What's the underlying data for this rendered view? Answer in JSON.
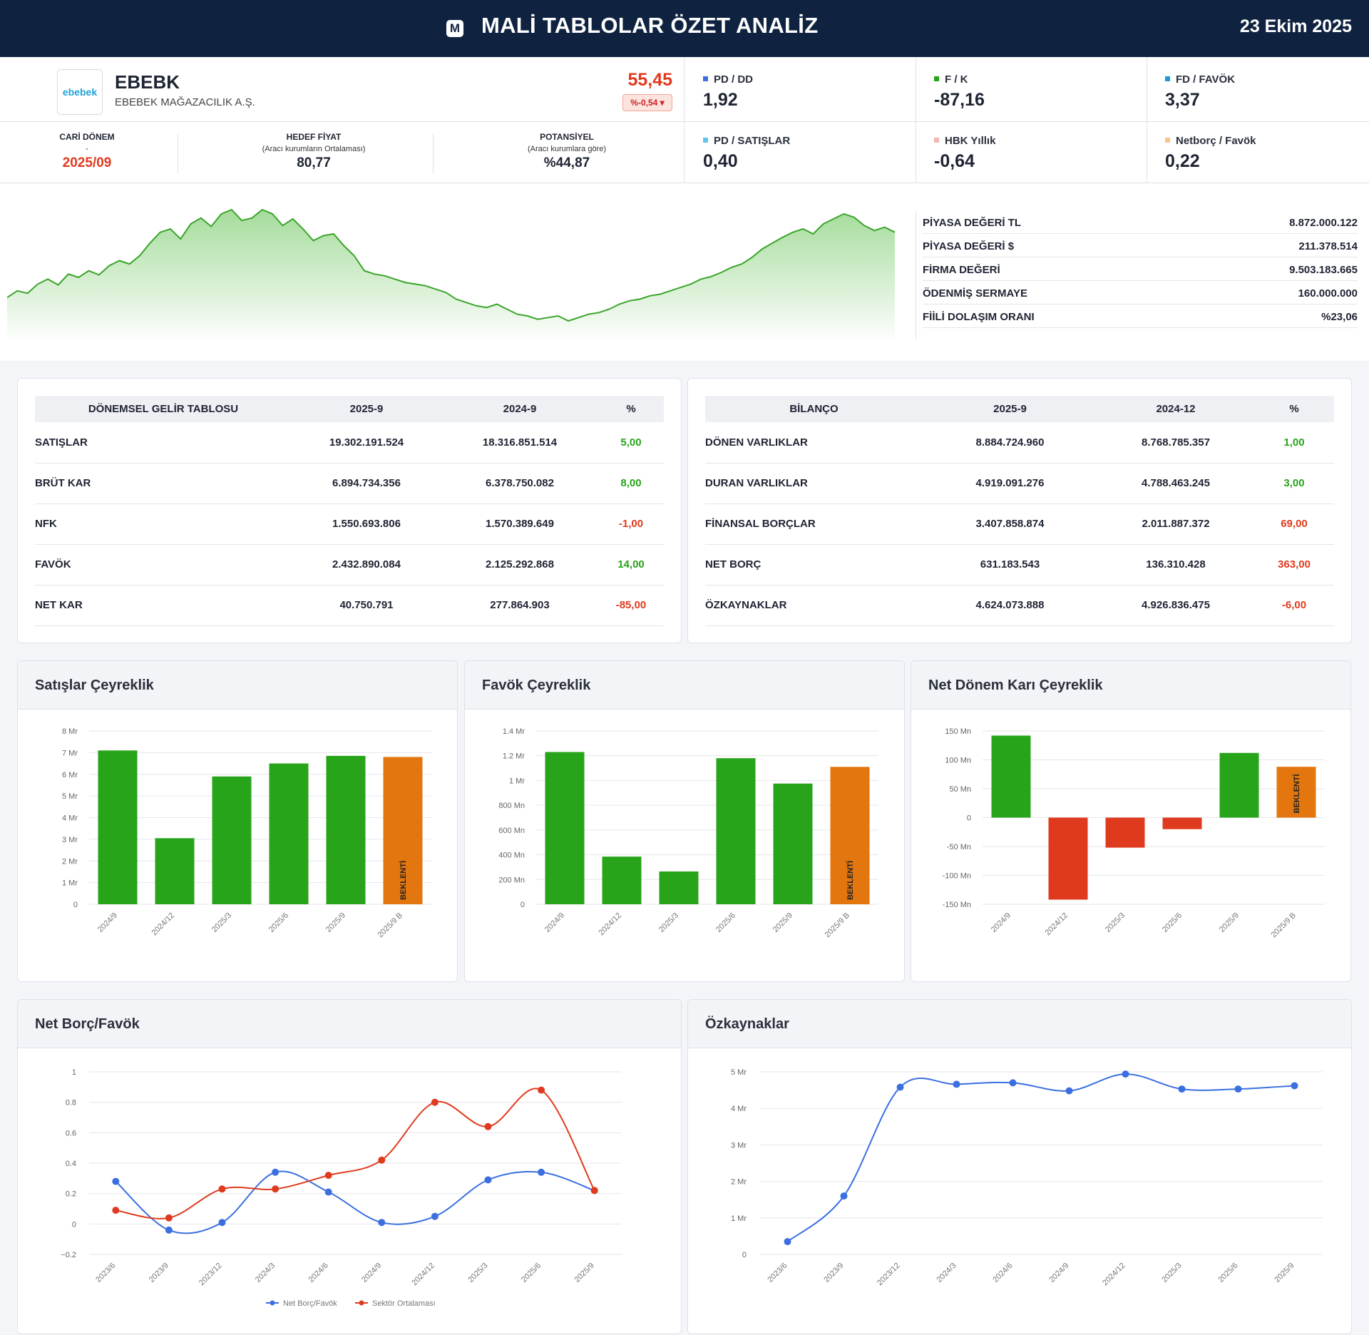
{
  "header": {
    "title": "MALİ TABLOLAR ÖZET ANALİZ",
    "date": "23 Ekim 2025",
    "logo_icon": "M"
  },
  "company": {
    "logo_text": "ebebek",
    "ticker": "EBEBK",
    "name": "EBEBEK MAĞAZACILIK A.Ş.",
    "price": "55,45",
    "change": "%-0,54 ▾"
  },
  "period": {
    "label": "CARİ DÖNEM",
    "sub": "-",
    "value": "2025/09"
  },
  "target": {
    "label": "HEDEF FİYAT",
    "sub": "(Aracı kurumların Ortalaması)",
    "value": "80,77"
  },
  "potential": {
    "label": "POTANSİYEL",
    "sub": "(Aracı kurumlara göre)",
    "value": "%44,87"
  },
  "ratios": [
    {
      "label": "PD / DD",
      "value": "1,92",
      "color": "#3b6fe0"
    },
    {
      "label": "F / K",
      "value": "-87,16",
      "color": "#27a41a"
    },
    {
      "label": "FD / FAVÖK",
      "value": "3,37",
      "color": "#1a9bd6"
    },
    {
      "label": "PD / SATIŞLAR",
      "value": "0,40",
      "color": "#62c4ea"
    },
    {
      "label": "HBK Yıllık",
      "value": "-0,64",
      "color": "#f2b8b0"
    },
    {
      "label": "Netborç / Favök",
      "value": "0,22",
      "color": "#f7c58a"
    }
  ],
  "market": [
    {
      "label": "PİYASA DEĞERİ TL",
      "value": "8.872.000.122"
    },
    {
      "label": "PİYASA DEĞERİ $",
      "value": "211.378.514"
    },
    {
      "label": "FİRMA DEĞERİ",
      "value": "9.503.183.665"
    },
    {
      "label": "ÖDENMİŞ SERMAYE",
      "value": "160.000.000"
    },
    {
      "label": "FİİLİ DOLAŞIM ORANI",
      "value": "%23,06"
    }
  ],
  "income": {
    "headers": [
      "DÖNEMSEL GELİR TABLOSU",
      "2025-9",
      "2024-9",
      "%"
    ],
    "rows": [
      [
        "SATIŞLAR",
        "19.302.191.524",
        "18.316.851.514",
        "5,00"
      ],
      [
        "BRÜT KAR",
        "6.894.734.356",
        "6.378.750.082",
        "8,00"
      ],
      [
        "NFK",
        "1.550.693.806",
        "1.570.389.649",
        "-1,00"
      ],
      [
        "FAVÖK",
        "2.432.890.084",
        "2.125.292.868",
        "14,00"
      ],
      [
        "NET KAR",
        "40.750.791",
        "277.864.903",
        "-85,00"
      ]
    ]
  },
  "balance": {
    "headers": [
      "BİLANÇO",
      "2025-9",
      "2024-12",
      "%"
    ],
    "rows": [
      [
        "DÖNEN VARLIKLAR",
        "8.884.724.960",
        "8.768.785.357",
        "1,00"
      ],
      [
        "DURAN VARLIKLAR",
        "4.919.091.276",
        "4.788.463.245",
        "3,00"
      ],
      [
        "FİNANSAL BORÇLAR",
        "3.407.858.874",
        "2.011.887.372",
        "69,00"
      ],
      [
        "NET BORÇ",
        "631.183.543",
        "136.310.428",
        "363,00"
      ],
      [
        "ÖZKAYNAKLAR",
        "4.624.073.888",
        "4.926.836.475",
        "-6,00"
      ]
    ]
  },
  "colors": {
    "pos": "#27a41a",
    "neg": "#e03a1e",
    "expect": "#e3760e",
    "blue": "#3b6fe0",
    "red": "#e03a1e",
    "price": "#3aa52a"
  },
  "chart_data": [
    {
      "type": "area",
      "id": "price",
      "series": [
        {
          "values": [
            30,
            38,
            35,
            46,
            52,
            45,
            58,
            54,
            62,
            57,
            68,
            74,
            70,
            80,
            95,
            108,
            112,
            100,
            118,
            125,
            115,
            130,
            135,
            122,
            125,
            135,
            130,
            116,
            124,
            112,
            98,
            104,
            106,
            92,
            80,
            62,
            58,
            56,
            52,
            48,
            46,
            44,
            40,
            36,
            28,
            24,
            20,
            18,
            22,
            16,
            10,
            8,
            4,
            6,
            8,
            2,
            6,
            10,
            12,
            16,
            22,
            26,
            28,
            32,
            34,
            38,
            42,
            46,
            52,
            55,
            60,
            66,
            70,
            78,
            88,
            95,
            102,
            108,
            112,
            106,
            118,
            124,
            130,
            126,
            116,
            110,
            114,
            108
          ]
        }
      ]
    },
    {
      "type": "bar",
      "id": "sales",
      "title": "Satışlar Çeyreklik",
      "categories": [
        "2024/9",
        "2024/12",
        "2025/3",
        "2025/6",
        "2025/9",
        "2025/9 B"
      ],
      "values": [
        7.1,
        3.05,
        5.9,
        6.5,
        6.85,
        6.8
      ],
      "expected_index": 5,
      "expected_label": "BEKLENTİ",
      "yticks": [
        "0",
        "1 Mr",
        "2 Mr",
        "3 Mr",
        "4 Mr",
        "5 Mr",
        "6 Mr",
        "7 Mr",
        "8 Mr"
      ],
      "ylim": [
        0,
        8
      ]
    },
    {
      "type": "bar",
      "id": "favok",
      "title": "Favök Çeyreklik",
      "categories": [
        "2024/9",
        "2024/12",
        "2025/3",
        "2025/6",
        "2025/9",
        "2025/9 B"
      ],
      "values": [
        1.23,
        0.385,
        0.265,
        1.18,
        0.975,
        1.11
      ],
      "expected_index": 5,
      "expected_label": "BEKLENTİ",
      "yticks": [
        "0",
        "200 Mn",
        "400 Mn",
        "600 Mn",
        "800 Mn",
        "1 Mr",
        "1.2 Mr",
        "1.4 Mr"
      ],
      "ylim": [
        0,
        1.4
      ]
    },
    {
      "type": "bar",
      "id": "netprofit",
      "title": "Net Dönem Karı Çeyreklik",
      "categories": [
        "2024/9",
        "2024/12",
        "2025/3",
        "2025/6",
        "2025/9",
        "2025/9 B"
      ],
      "values": [
        142,
        -142,
        -52,
        -20,
        112,
        88
      ],
      "expected_index": 5,
      "expected_label": "BEKLENTİ",
      "yticks": [
        "-150 Mn",
        "-100 Mn",
        "-50 Mn",
        "0",
        "50 Mn",
        "100 Mn",
        "150 Mn"
      ],
      "ylim": [
        -150,
        150
      ]
    },
    {
      "type": "line",
      "id": "netdebt",
      "title": "Net Borç/Favök",
      "categories": [
        "2023/6",
        "2023/9",
        "2023/12",
        "2024/3",
        "2024/6",
        "2024/9",
        "2024/12",
        "2025/3",
        "2025/6",
        "2025/9"
      ],
      "series": [
        {
          "name": "Net Borç/Favök",
          "values": [
            0.28,
            -0.04,
            0.01,
            0.34,
            0.21,
            0.01,
            0.05,
            0.29,
            0.34,
            0.22
          ]
        },
        {
          "name": "Sektör Ortalaması",
          "values": [
            0.09,
            0.04,
            0.23,
            0.23,
            0.32,
            0.42,
            0.8,
            0.64,
            0.88,
            0.22
          ]
        }
      ],
      "yticks": [
        "−0.2",
        "0",
        "0.2",
        "0.4",
        "0.6",
        "0.8",
        "1"
      ],
      "ylim": [
        -0.2,
        1
      ]
    },
    {
      "type": "line",
      "id": "equity",
      "title": "Özkaynaklar",
      "categories": [
        "2023/6",
        "2023/9",
        "2023/12",
        "2024/3",
        "2024/6",
        "2024/9",
        "2024/12",
        "2025/3",
        "2025/6",
        "2025/9"
      ],
      "series": [
        {
          "values": [
            0.35,
            1.6,
            4.58,
            4.66,
            4.7,
            4.48,
            4.94,
            4.53,
            4.53,
            4.62
          ]
        }
      ],
      "yticks": [
        "0",
        "1 Mr",
        "2 Mr",
        "3 Mr",
        "4 Mr",
        "5 Mr"
      ],
      "ylim": [
        0,
        5
      ]
    }
  ]
}
